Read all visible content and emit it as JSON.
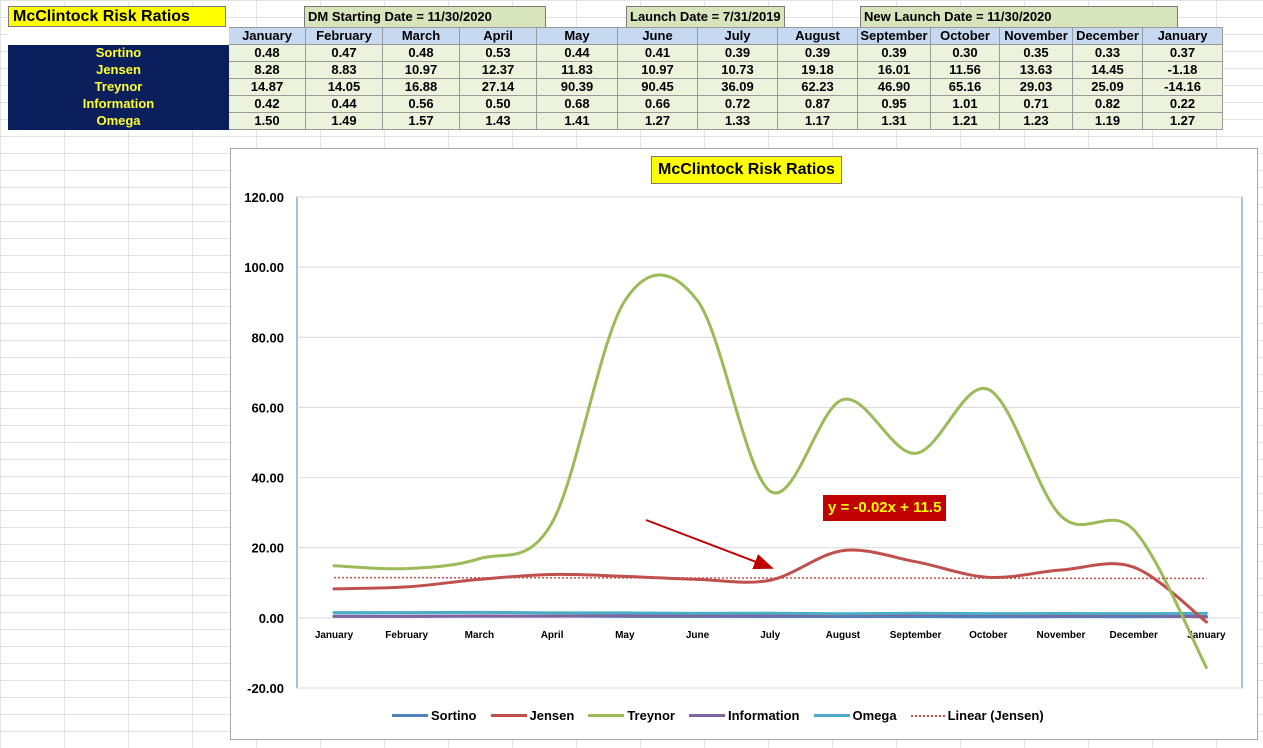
{
  "sheet": {
    "title": "McClintock Risk Ratios",
    "header_dm": "DM Starting Date = 11/30/2020",
    "header_launch": "Launch Date = 7/31/2019",
    "header_new_launch": "New Launch Date = 11/30/2020",
    "months": [
      "January",
      "February",
      "March",
      "April",
      "May",
      "June",
      "July",
      "August",
      "September",
      "October",
      "November",
      "December",
      "January"
    ],
    "rows": [
      {
        "label": "Sortino",
        "values": [
          "0.48",
          "0.47",
          "0.48",
          "0.53",
          "0.44",
          "0.41",
          "0.39",
          "0.39",
          "0.39",
          "0.30",
          "0.35",
          "0.33",
          "0.37"
        ]
      },
      {
        "label": "Jensen",
        "values": [
          "8.28",
          "8.83",
          "10.97",
          "12.37",
          "11.83",
          "10.97",
          "10.73",
          "19.18",
          "16.01",
          "11.56",
          "13.63",
          "14.45",
          "-1.18"
        ]
      },
      {
        "label": "Treynor",
        "values": [
          "14.87",
          "14.05",
          "16.88",
          "27.14",
          "90.39",
          "90.45",
          "36.09",
          "62.23",
          "46.90",
          "65.16",
          "29.03",
          "25.09",
          "-14.16"
        ]
      },
      {
        "label": "Information",
        "values": [
          "0.42",
          "0.44",
          "0.56",
          "0.50",
          "0.68",
          "0.66",
          "0.72",
          "0.87",
          "0.95",
          "1.01",
          "0.71",
          "0.82",
          "0.22"
        ]
      },
      {
        "label": "Omega",
        "values": [
          "1.50",
          "1.49",
          "1.57",
          "1.43",
          "1.41",
          "1.27",
          "1.33",
          "1.17",
          "1.31",
          "1.21",
          "1.23",
          "1.19",
          "1.27"
        ]
      }
    ]
  },
  "chart_data": {
    "type": "line",
    "title": "McClintock Risk Ratios",
    "categories": [
      "January",
      "February",
      "March",
      "April",
      "May",
      "June",
      "July",
      "August",
      "September",
      "October",
      "November",
      "December",
      "January"
    ],
    "ylim": [
      -20,
      120
    ],
    "yticks": [
      "120.00",
      "100.00",
      "80.00",
      "60.00",
      "40.00",
      "20.00",
      "0.00",
      "-20.00"
    ],
    "grid": true,
    "legend_position": "bottom",
    "series": [
      {
        "name": "Sortino",
        "color": "#4f81bd",
        "values": [
          0.48,
          0.47,
          0.48,
          0.53,
          0.44,
          0.41,
          0.39,
          0.39,
          0.39,
          0.3,
          0.35,
          0.33,
          0.37
        ]
      },
      {
        "name": "Jensen",
        "color": "#c0504d",
        "values": [
          8.28,
          8.83,
          10.97,
          12.37,
          11.83,
          10.97,
          10.73,
          19.18,
          16.01,
          11.56,
          13.63,
          14.45,
          -1.18
        ]
      },
      {
        "name": "Treynor",
        "color": "#9bbb59",
        "values": [
          14.87,
          14.05,
          16.88,
          27.14,
          90.39,
          90.45,
          36.09,
          62.23,
          46.9,
          65.16,
          29.03,
          25.09,
          -14.16
        ]
      },
      {
        "name": "Information",
        "color": "#8064a2",
        "values": [
          0.42,
          0.44,
          0.56,
          0.5,
          0.68,
          0.66,
          0.72,
          0.87,
          0.95,
          1.01,
          0.71,
          0.82,
          0.22
        ]
      },
      {
        "name": "Omega",
        "color": "#4bacc6",
        "values": [
          1.5,
          1.49,
          1.57,
          1.43,
          1.41,
          1.27,
          1.33,
          1.17,
          1.31,
          1.21,
          1.23,
          1.19,
          1.27
        ]
      }
    ],
    "trendline": {
      "name": "Linear (Jensen)",
      "color": "#c0504d",
      "style": "dotted",
      "slope": -0.02,
      "intercept": 11.5
    },
    "annotation": {
      "text": "y = -0.02x + 11.5",
      "color": "#c00000",
      "text_color": "#ffff00"
    }
  }
}
